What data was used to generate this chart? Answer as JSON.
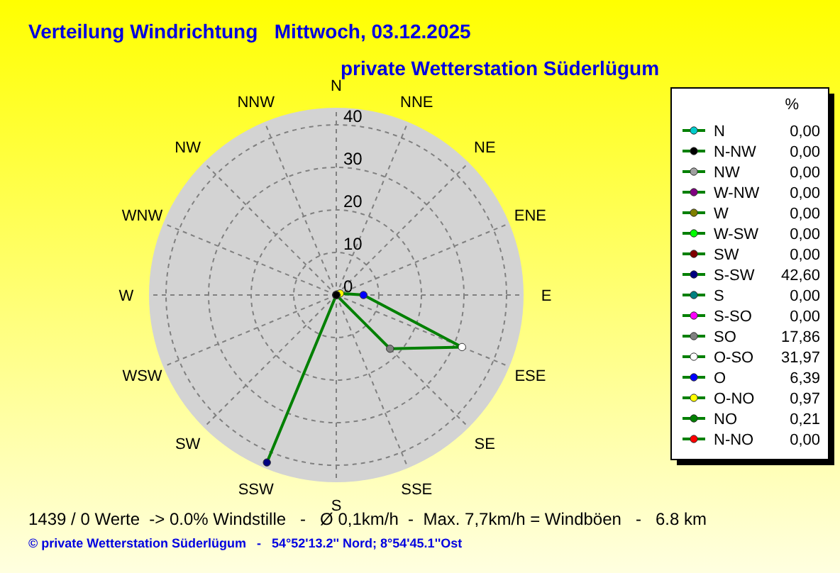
{
  "chart_data": [
    {
      "type": "radar",
      "title": "Verteilung Windrichtung   Mittwoch, 03.12.2025",
      "subtitle": "private Wetterstation Süderlügum",
      "categories": [
        "N",
        "NNE",
        "NE",
        "ENE",
        "E",
        "ESE",
        "SE",
        "SSE",
        "S",
        "SSW",
        "SW",
        "WSW",
        "W",
        "WNW",
        "NW",
        "NNW"
      ],
      "series": [
        {
          "color": "#008000",
          "values": [
            0,
            0,
            0.21,
            0.97,
            6.39,
            31.97,
            17.86,
            0,
            0,
            42.6,
            0,
            0,
            0,
            0,
            0,
            0
          ],
          "colors": [
            "#00cccc",
            "#ff0000",
            "#008000",
            "#ffff00",
            "#0000ff",
            "#ffffff",
            "#808080",
            "#ff00ff",
            "#008080",
            "#000080",
            "#800000",
            "#00ff00",
            "#808000",
            "#800080",
            "#a0a0a0",
            "#000000"
          ]
        }
      ],
      "ylim": [
        0,
        44
      ],
      "yticks": [
        0,
        10,
        20,
        30,
        40
      ],
      "grid": true,
      "marker": "circle",
      "annotations": [
        "1439 / 0 Werte  -> 0.0% Windstille   -   Ø 0,1km/h  -  Max. 7,7km/h = Windböen   -   6.8 km",
        "© private Wetterstation Süderlügum   -   54°52'13.2'' Nord; 8°54'45.1''Ost"
      ]
    },
    {
      "type": "other",
      "title": "%",
      "categories": [
        "N",
        "N-NW",
        "NW",
        "W-NW",
        "W",
        "W-SW",
        "SW",
        "S-SW",
        "S",
        "S-SO",
        "SO",
        "O-SO",
        "O",
        "O-NO",
        "NO",
        "N-NO"
      ],
      "value_labels": [
        "0,00",
        "0,00",
        "0,00",
        "0,00",
        "0,00",
        "0,00",
        "0,00",
        "42,60",
        "0,00",
        "0,00",
        "17,86",
        "31,97",
        "6,39",
        "0,97",
        "0,21",
        "0,00"
      ],
      "colors": [
        "#00cccc",
        "#000000",
        "#a0a0a0",
        "#800080",
        "#808000",
        "#00ff00",
        "#800000",
        "#000080",
        "#008080",
        "#ff00ff",
        "#808080",
        "#ffffff",
        "#0000ff",
        "#ffff00",
        "#008000",
        "#ff0000"
      ]
    }
  ]
}
